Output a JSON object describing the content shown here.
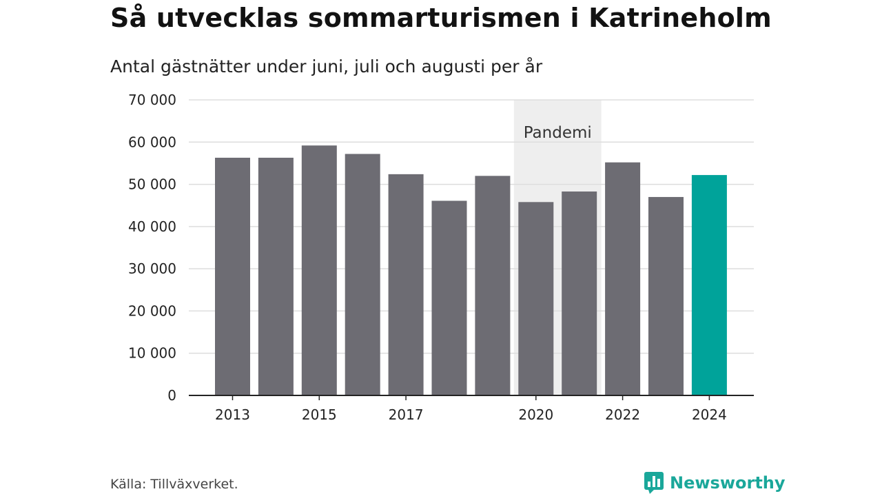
{
  "title": "Så utvecklas sommarturismen i Katrineholm",
  "subtitle": "Antal gästnätter under juni, juli och augusti per år",
  "source": "Källa: Tillväxverket.",
  "brand": {
    "name": "Newsworthy",
    "icon": "newsworthy-logo-icon",
    "color": "#1aa79a"
  },
  "colors": {
    "bar": "#6d6c73",
    "highlight": "#00a39a",
    "band": "#eeeeee",
    "grid": "#dddddd",
    "axis": "#222222"
  },
  "chart_data": {
    "type": "bar",
    "categories": [
      "2013",
      "2014",
      "2015",
      "2016",
      "2017",
      "2018",
      "2019",
      "2020",
      "2021",
      "2022",
      "2023",
      "2024"
    ],
    "values": [
      56300,
      56300,
      59200,
      57200,
      52400,
      46100,
      52000,
      45800,
      48300,
      55200,
      47000,
      52200
    ],
    "highlight_category": "2024",
    "x_tick_labels": [
      "2013",
      "2015",
      "2017",
      "2020",
      "2022",
      "2024"
    ],
    "y_ticks": [
      0,
      10000,
      20000,
      30000,
      40000,
      50000,
      60000,
      70000
    ],
    "y_tick_labels": [
      "0",
      "10 000",
      "20 000",
      "30 000",
      "40 000",
      "50 000",
      "60 000",
      "70 000"
    ],
    "ylim": [
      0,
      70000
    ],
    "grid": true,
    "annotation": {
      "label": "Pandemi",
      "from": "2020",
      "to": "2021"
    }
  }
}
